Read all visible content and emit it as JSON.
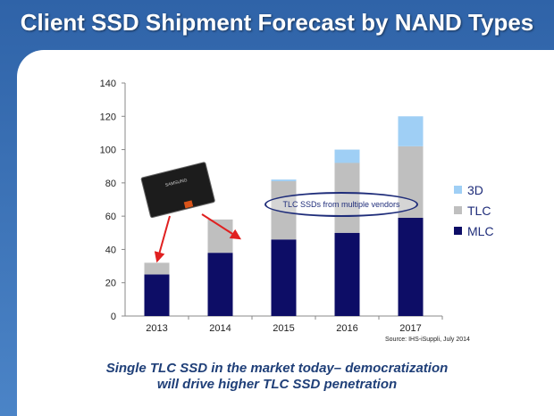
{
  "title": "Client SSD Shipment Forecast by NAND Types",
  "source": "Source:  IHS-iSuppli, July 2014",
  "callout": "TLC SSDs from multiple vendors",
  "caption_line1": "Single TLC SSD in the market today– democratization",
  "caption_line2": "will drive higher TLC SSD penetration",
  "ssd_brand": "SAMSUNG",
  "colors": {
    "MLC": "#0d0d66",
    "TLC": "#bfbfbf",
    "3D": "#9fcff5"
  },
  "chart_data": {
    "type": "bar",
    "stacked": true,
    "categories": [
      "2013",
      "2014",
      "2015",
      "2016",
      "2017"
    ],
    "series": [
      {
        "name": "MLC",
        "values": [
          25,
          38,
          46,
          50,
          59
        ]
      },
      {
        "name": "TLC",
        "values": [
          7,
          20,
          35,
          42,
          43
        ]
      },
      {
        "name": "3D",
        "values": [
          0,
          0,
          1,
          8,
          18
        ]
      }
    ],
    "yticks": [
      0,
      20,
      40,
      60,
      80,
      100,
      120,
      140
    ],
    "ylim": [
      0,
      140
    ],
    "legend_position": "right",
    "grid": false
  }
}
